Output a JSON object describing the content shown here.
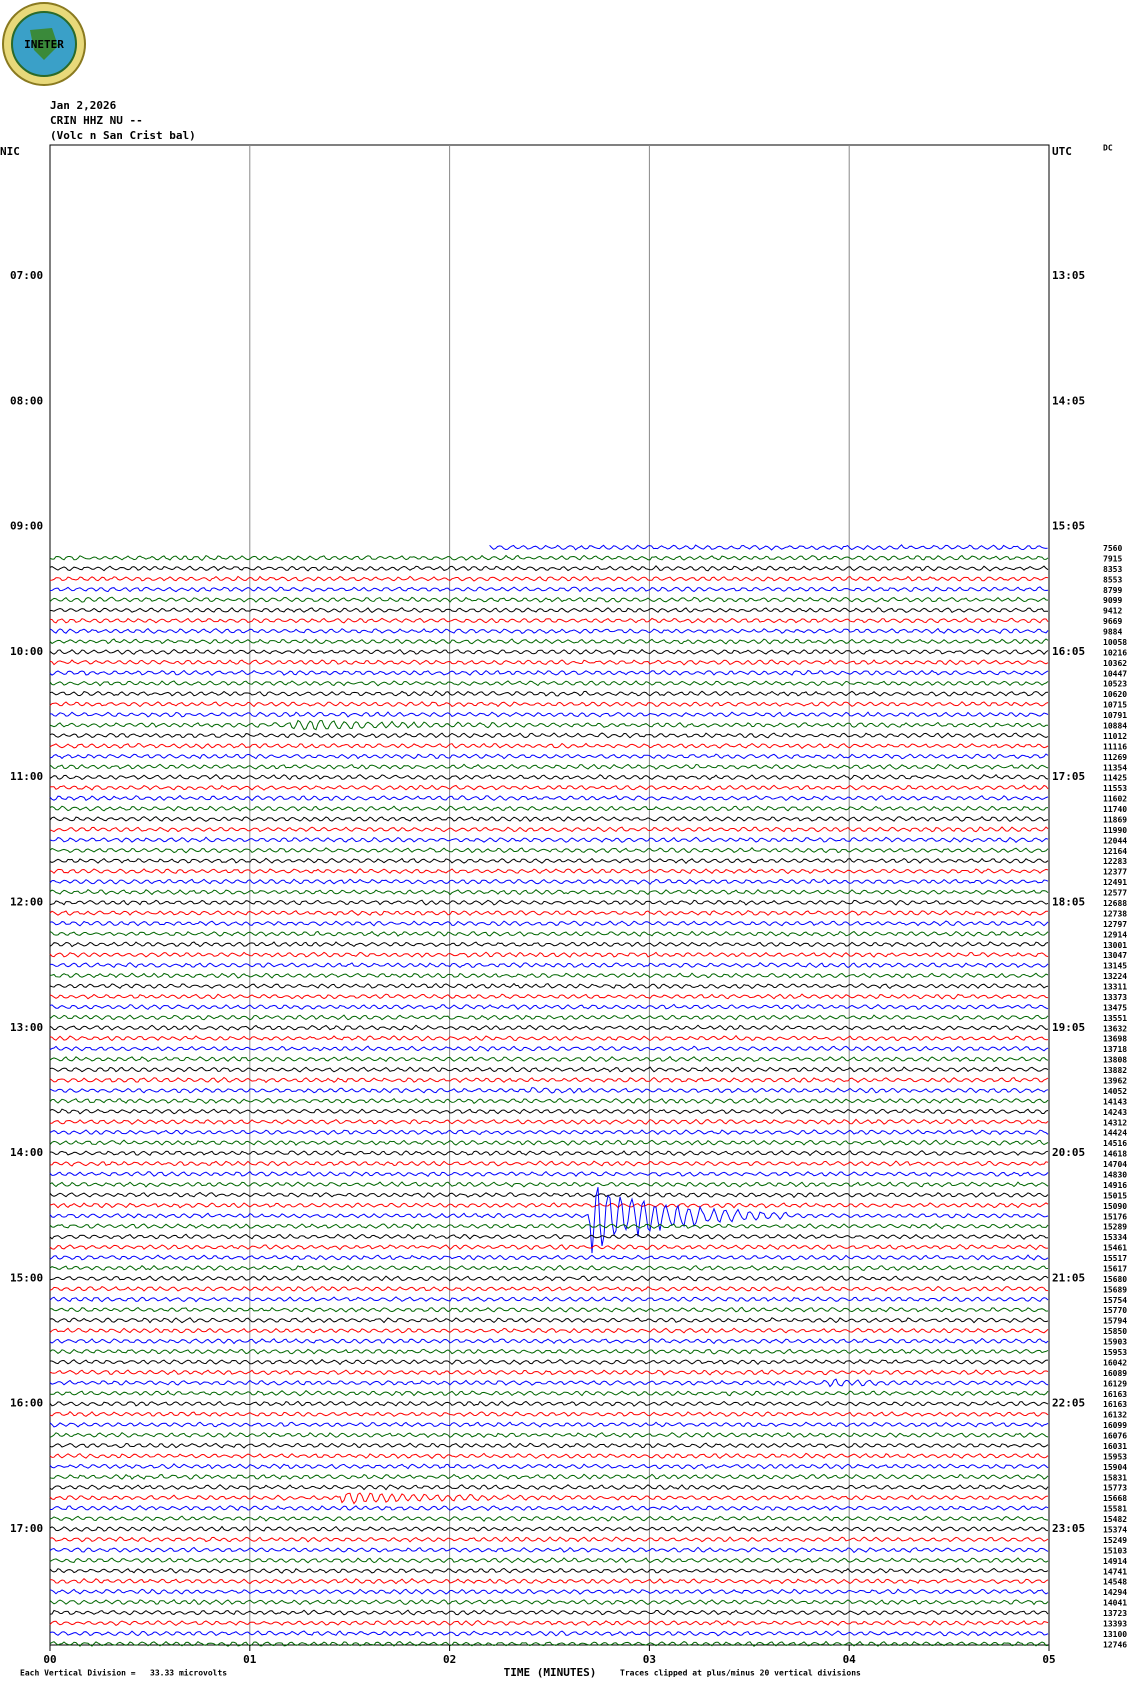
{
  "logo": {
    "text": "INETER"
  },
  "header": {
    "date": "Jan 2,2026",
    "station": "CRIN HHZ NU --",
    "location": "(Volc n San Crist bal)"
  },
  "left_axis_label": "NIC",
  "right_axis_label": "UTC",
  "dc_label": "DC",
  "left_labels": [
    "07:00",
    "08:00",
    "09:00",
    "10:00",
    "11:00",
    "12:00",
    "13:00",
    "14:00",
    "15:00",
    "16:00",
    "17:00"
  ],
  "right_labels": [
    "13:05",
    "14:05",
    "15:05",
    "16:05",
    "17:05",
    "18:05",
    "19:05",
    "20:05",
    "21:05",
    "22:05",
    "23:05"
  ],
  "dc_values": [
    7560,
    7915,
    8353,
    8553,
    8799,
    9099,
    9412,
    9669,
    9884,
    10058,
    10216,
    10362,
    10447,
    10523,
    10620,
    10715,
    10791,
    10884,
    11012,
    11116,
    11269,
    11354,
    11425,
    11553,
    11602,
    11740,
    11869,
    11990,
    12044,
    12164,
    12283,
    12377,
    12491,
    12577,
    12688,
    12738,
    12797,
    12914,
    13001,
    13047,
    13145,
    13224,
    13311,
    13373,
    13475,
    13551,
    13632,
    13698,
    13718,
    13808,
    13882,
    13962,
    14052,
    14143,
    14243,
    14312,
    14424,
    14516,
    14618,
    14704,
    14830,
    14916,
    15015,
    15090,
    15176,
    15289,
    15334,
    15461,
    15517,
    15617,
    15680,
    15689,
    15754,
    15770,
    15794,
    15850,
    15903,
    15953,
    16042,
    16089,
    16129,
    16163,
    16163,
    16132,
    16099,
    16076,
    16031,
    15953,
    15904,
    15831,
    15773,
    15668,
    15581,
    15482,
    15374,
    15249,
    15103,
    14914,
    14741,
    14548,
    14294,
    14041,
    13723,
    13393,
    13100,
    12746
  ],
  "x_ticks": [
    "00",
    "01",
    "02",
    "03",
    "04",
    "05"
  ],
  "x_label": "TIME (MINUTES)",
  "footer": {
    "left": "Each Vertical Division =   33.33 microvolts",
    "right": "Traces clipped at plus/minus 20 vertical divisions"
  }
}
